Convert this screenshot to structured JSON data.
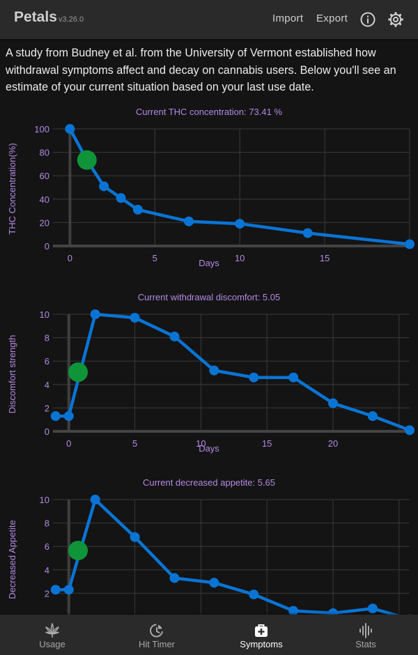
{
  "app": {
    "title": "Petals",
    "version": "v3.26.0",
    "import_label": "Import",
    "export_label": "Export",
    "info_icon": "info-circle",
    "settings_icon": "gear"
  },
  "intro": "A study from Budney et al. from the University of Vermont established how withdrawal symptoms affect and decay on cannabis users. Below you'll see an estimate of your current situation based on your last use date.",
  "colors": {
    "line": "#0a74d4",
    "current_point": "#0f9439",
    "label": "#b58ae6",
    "background": "#141414",
    "bar": "#2a2a2a"
  },
  "chart_data": [
    {
      "type": "line",
      "title": "Current THC concentration: 73.41 %",
      "xlabel": "Days",
      "ylabel": "THC Concentration(%)",
      "xlim": [
        -1,
        20
      ],
      "ylim": [
        0,
        100
      ],
      "xticks": [
        0,
        5,
        10,
        15
      ],
      "yticks": [
        0,
        20,
        40,
        60,
        80,
        100
      ],
      "x": [
        0,
        1,
        2,
        3,
        4,
        7,
        10,
        14,
        20
      ],
      "y": [
        100,
        73.41,
        51,
        41,
        31,
        21,
        19,
        11,
        1.5
      ],
      "current": {
        "x": 1,
        "y": 73.41
      },
      "grid": true
    },
    {
      "type": "line",
      "title": "Current withdrawal discomfort: 5.05",
      "xlabel": "Days",
      "ylabel": "Discomfort strength",
      "xlim": [
        -1.2,
        25.8
      ],
      "ylim": [
        0,
        10
      ],
      "xticks": [
        0,
        5,
        10,
        15,
        20
      ],
      "yticks": [
        0,
        2,
        4,
        6,
        8,
        10
      ],
      "x": [
        -1,
        0,
        2,
        5,
        8,
        11,
        14,
        17,
        20,
        23,
        25.8
      ],
      "y": [
        1.3,
        1.3,
        10,
        9.7,
        8.1,
        5.2,
        4.6,
        4.6,
        2.4,
        1.3,
        0.1
      ],
      "current": {
        "x": 0.7,
        "y": 5.05
      },
      "grid": true
    },
    {
      "type": "line",
      "title": "Current decreased appetite: 5.65",
      "xlabel": "",
      "ylabel": "Decreased Appetite",
      "xlim": [
        -1.2,
        25.8
      ],
      "ylim": [
        0,
        10
      ],
      "xticks": [],
      "yticks": [
        2,
        4,
        6,
        8,
        10
      ],
      "x": [
        -1,
        0,
        2,
        5,
        8,
        11,
        14,
        17,
        20,
        23,
        25.8
      ],
      "y": [
        2.3,
        2.3,
        10,
        6.8,
        3.3,
        2.9,
        1.9,
        0.5,
        0.3,
        0.7,
        -0.2
      ],
      "current": {
        "x": 0.7,
        "y": 5.65
      },
      "grid": true
    }
  ],
  "nav": [
    {
      "label": "Usage",
      "icon": "cannabis-leaf",
      "active": false
    },
    {
      "label": "Hit Timer",
      "icon": "timer-clock",
      "active": false
    },
    {
      "label": "Symptoms",
      "icon": "medical-kit",
      "active": true
    },
    {
      "label": "Stats",
      "icon": "sound-bars",
      "active": false
    }
  ]
}
